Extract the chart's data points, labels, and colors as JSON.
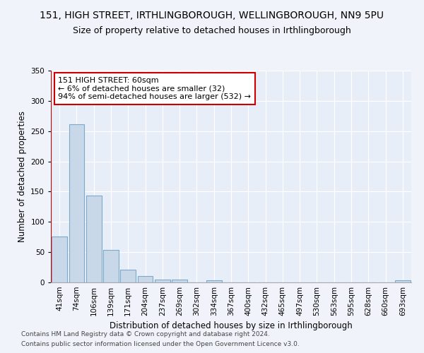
{
  "title": "151, HIGH STREET, IRTHLINGBOROUGH, WELLINGBOROUGH, NN9 5PU",
  "subtitle": "Size of property relative to detached houses in Irthlingborough",
  "xlabel": "Distribution of detached houses by size in Irthlingborough",
  "ylabel": "Number of detached properties",
  "footer_line1": "Contains HM Land Registry data © Crown copyright and database right 2024.",
  "footer_line2": "Contains public sector information licensed under the Open Government Licence v3.0.",
  "annotation_title": "151 HIGH STREET: 60sqm",
  "annotation_line1": "← 6% of detached houses are smaller (32)",
  "annotation_line2": "94% of semi-detached houses are larger (532) →",
  "bar_labels": [
    "41sqm",
    "74sqm",
    "106sqm",
    "139sqm",
    "171sqm",
    "204sqm",
    "237sqm",
    "269sqm",
    "302sqm",
    "334sqm",
    "367sqm",
    "400sqm",
    "432sqm",
    "465sqm",
    "497sqm",
    "530sqm",
    "563sqm",
    "595sqm",
    "628sqm",
    "660sqm",
    "693sqm"
  ],
  "bar_values": [
    76,
    261,
    143,
    54,
    21,
    11,
    5,
    5,
    0,
    4,
    0,
    0,
    0,
    0,
    0,
    0,
    0,
    0,
    0,
    0,
    3
  ],
  "bar_color": "#c8d8e8",
  "bar_edge_color": "#7aaac8",
  "ylim": [
    0,
    350
  ],
  "yticks": [
    0,
    50,
    100,
    150,
    200,
    250,
    300,
    350
  ],
  "bg_color": "#f0f4fa",
  "plot_bg_color": "#e8eef8",
  "grid_color": "#ffffff",
  "annotation_box_color": "#ffffff",
  "annotation_box_edge": "#cc0000",
  "property_line_color": "#cc0000",
  "title_fontsize": 10,
  "subtitle_fontsize": 9,
  "axis_label_fontsize": 8.5,
  "tick_fontsize": 7.5,
  "annotation_fontsize": 8,
  "footer_fontsize": 6.5
}
